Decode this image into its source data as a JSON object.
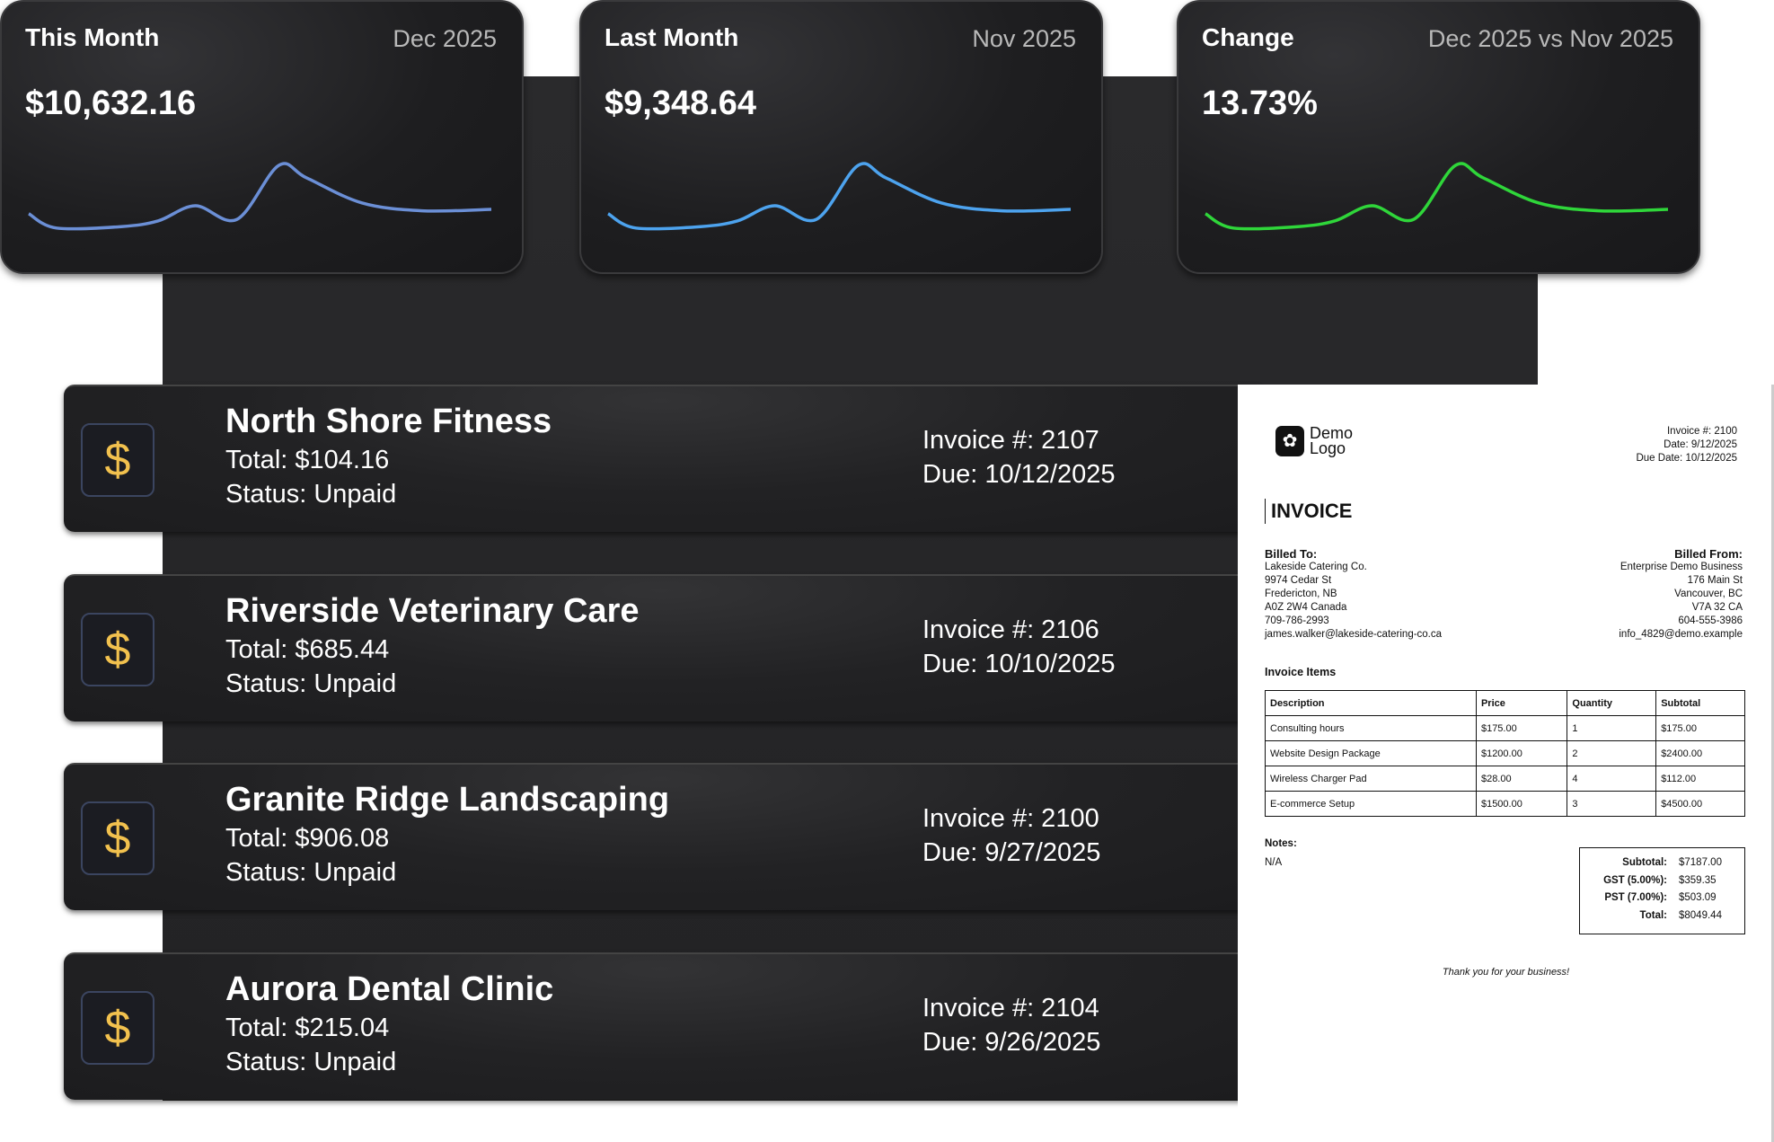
{
  "cards": [
    {
      "title": "This Month",
      "period": "Dec 2025",
      "value": "$10,632.16",
      "color": "#6b8fd6"
    },
    {
      "title": "Last Month",
      "period": "Nov 2025",
      "value": "$9,348.64",
      "color": "#4da3ee"
    },
    {
      "title": "Change",
      "period": "Dec 2025 vs Nov 2025",
      "value": "13.73%",
      "color": "#2fd63a"
    }
  ],
  "chart_data": {
    "type": "line",
    "x": [
      0,
      0.06,
      0.2,
      0.28,
      0.36,
      0.45,
      0.54,
      0.6,
      0.72,
      0.85,
      1
    ],
    "values": [
      24,
      4,
      6,
      14,
      35,
      16,
      91,
      74,
      39,
      28,
      30
    ]
  },
  "invoices": [
    {
      "name": "North Shore Fitness",
      "total": "Total: $104.16",
      "status": "Status: Unpaid",
      "number": "Invoice #: 2107",
      "due": "Due: 10/12/2025"
    },
    {
      "name": "Riverside Veterinary Care",
      "total": "Total: $685.44",
      "status": "Status: Unpaid",
      "number": "Invoice #: 2106",
      "due": "Due: 10/10/2025"
    },
    {
      "name": "Granite Ridge Landscaping",
      "total": "Total: $906.08",
      "status": "Status: Unpaid",
      "number": "Invoice #: 2100",
      "due": "Due: 9/27/2025"
    },
    {
      "name": "Aurora Dental Clinic",
      "total": "Total: $215.04",
      "status": "Status: Unpaid",
      "number": "Invoice #: 2104",
      "due": "Due: 9/26/2025"
    }
  ],
  "icon": "$",
  "doc": {
    "logo": [
      "Demo",
      "Logo"
    ],
    "meta": [
      "Invoice #: 2100",
      "Date: 9/12/2025",
      "Due Date: 10/12/2025"
    ],
    "heading": "INVOICE",
    "billed_to_label": "Billed To:",
    "billed_to": [
      "Lakeside Catering Co.",
      "9974 Cedar St",
      "Fredericton, NB",
      "A0Z 2W4 Canada",
      "709-786-2993",
      "james.walker@lakeside-catering-co.ca"
    ],
    "billed_from_label": "Billed From:",
    "billed_from": [
      "Enterprise Demo Business",
      "176 Main St",
      "Vancouver, BC",
      "V7A 32 CA",
      "604-555-3986",
      "info_4829@demo.example"
    ],
    "items_label": "Invoice Items",
    "columns": [
      "Description",
      "Price",
      "Quantity",
      "Subtotal"
    ],
    "rows": [
      [
        "Consulting hours",
        "$175.00",
        "1",
        "$175.00"
      ],
      [
        "Website Design Package",
        "$1200.00",
        "2",
        "$2400.00"
      ],
      [
        "Wireless Charger Pad",
        "$28.00",
        "4",
        "$112.00"
      ],
      [
        "E-commerce Setup",
        "$1500.00",
        "3",
        "$4500.00"
      ]
    ],
    "notes_label": "Notes:",
    "notes": "N/A",
    "summary": [
      [
        "Subtotal:",
        "$7187.00"
      ],
      [
        "GST (5.00%):",
        "$359.35"
      ],
      [
        "PST (7.00%):",
        "$503.09"
      ],
      [
        "Total:",
        "$8049.44"
      ]
    ],
    "thanks": "Thank you for your business!"
  }
}
